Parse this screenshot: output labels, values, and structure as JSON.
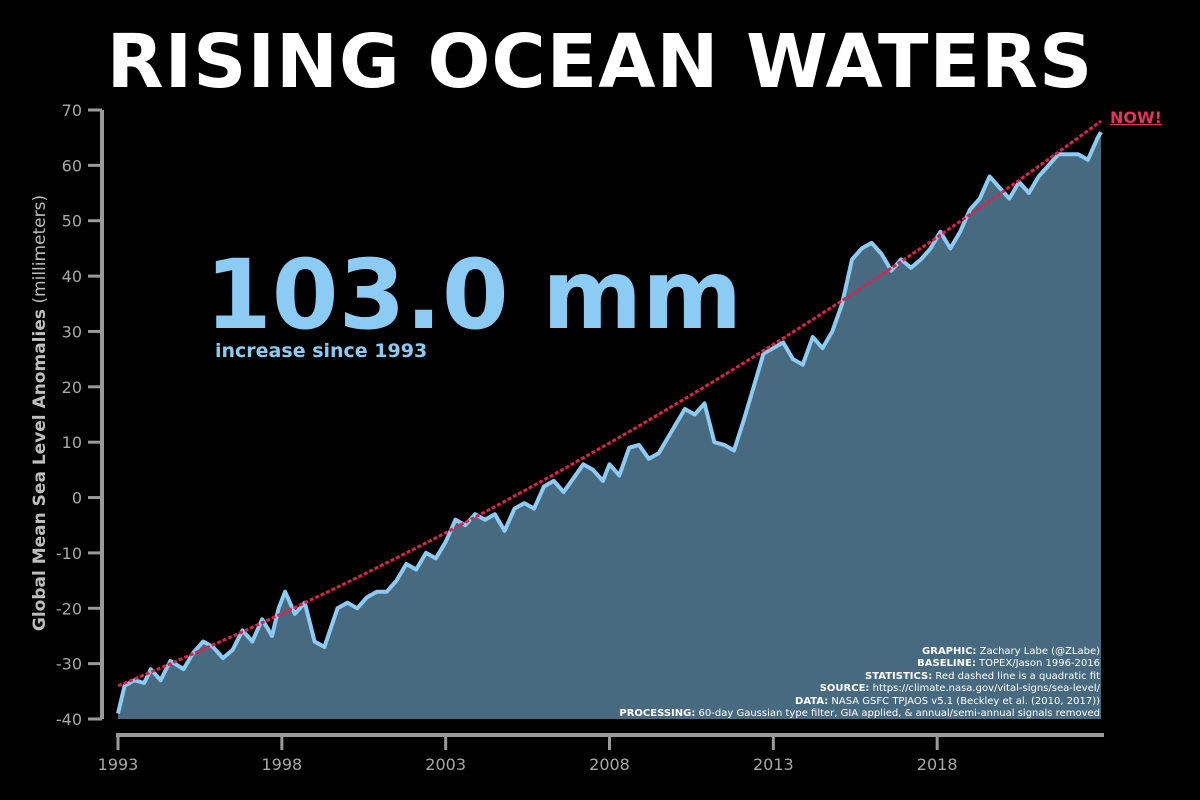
{
  "page": {
    "title": "RISING OCEAN WATERS",
    "big_value": "103.0 mm",
    "big_caption": "increase since 1993",
    "now_label": "NOW!",
    "credits": [
      {
        "key": "GRAPHIC:",
        "value": " Zachary Labe (@ZLabe)"
      },
      {
        "key": "BASELINE:",
        "value": " TOPEX/Jason 1996-2016"
      },
      {
        "key": "STATISTICS:",
        "value": " Red dashed line is a quadratic fit"
      },
      {
        "key": "SOURCE:",
        "value": " https://climate.nasa.gov/vital-signs/sea-level/"
      },
      {
        "key": "DATA:",
        "value": " NASA GSFC TPJAOS v5.1 (Beckley et al. (2010, 2017))"
      },
      {
        "key": "PROCESSING:",
        "value": " 60-day Gaussian type filter, GIA applied, & annual/semi-annual signals removed"
      }
    ]
  },
  "colors": {
    "background": "#000000",
    "fill": "#476a80",
    "line": "#8ccbf4",
    "fit": "#d8244f",
    "axis": "#9a9a9a",
    "tick_label": "#a8a8a8"
  },
  "chart_data": {
    "type": "area",
    "title": "RISING OCEAN WATERS",
    "ylabel_bold": "Global Mean Sea Level Anomalies",
    "ylabel_unit": "(millimeters)",
    "xlabel": "",
    "xlim": [
      1993,
      2023
    ],
    "ylim": [
      -40,
      70
    ],
    "xticks": [
      1993,
      1998,
      2003,
      2008,
      2013,
      2018
    ],
    "yticks": [
      -40,
      -30,
      -20,
      -10,
      0,
      10,
      20,
      30,
      40,
      50,
      60,
      70
    ],
    "grid": false,
    "series": [
      {
        "name": "",
        "x": [
          1993.0,
          1993.2,
          1993.5,
          1993.8,
          1994.0,
          1994.3,
          1994.6,
          1995.0,
          1995.3,
          1995.6,
          1995.9,
          1996.2,
          1996.5,
          1996.8,
          1997.1,
          1997.4,
          1997.7,
          1997.9,
          1998.1,
          1998.4,
          1998.7,
          1999.0,
          1999.3,
          1999.7,
          2000.0,
          2000.3,
          2000.6,
          2000.9,
          2001.2,
          2001.5,
          2001.8,
          2002.1,
          2002.4,
          2002.7,
          2003.0,
          2003.3,
          2003.6,
          2003.9,
          2004.2,
          2004.5,
          2004.8,
          2005.1,
          2005.4,
          2005.7,
          2006.0,
          2006.3,
          2006.6,
          2006.9,
          2007.2,
          2007.5,
          2007.8,
          2008.0,
          2008.3,
          2008.6,
          2008.9,
          2009.2,
          2009.5,
          2009.8,
          2010.0,
          2010.3,
          2010.6,
          2010.9,
          2011.2,
          2011.5,
          2011.8,
          2012.1,
          2012.4,
          2012.7,
          2013.0,
          2013.3,
          2013.6,
          2013.9,
          2014.2,
          2014.5,
          2014.8,
          2015.1,
          2015.4,
          2015.7,
          2016.0,
          2016.3,
          2016.6,
          2016.9,
          2017.2,
          2017.5,
          2017.8,
          2018.1,
          2018.4,
          2018.7,
          2019.0,
          2019.3,
          2019.6,
          2019.9,
          2020.2,
          2020.5,
          2020.8,
          2021.1,
          2021.4,
          2021.7,
          2022.0,
          2022.3,
          2022.6,
          2022.9,
          2023.0
        ],
        "values": [
          -39,
          -34,
          -33,
          -33.5,
          -31,
          -33,
          -29.5,
          -31,
          -28,
          -26,
          -27,
          -29,
          -27.5,
          -24,
          -26,
          -22,
          -25,
          -20,
          -17,
          -21,
          -19,
          -26,
          -27,
          -20,
          -19,
          -20,
          -18,
          -17,
          -17,
          -15,
          -12,
          -13,
          -10,
          -11,
          -8,
          -4,
          -5,
          -3,
          -4,
          -3,
          -6,
          -2,
          -1,
          -2,
          2,
          3,
          1,
          3.5,
          6,
          5,
          3,
          6,
          4,
          9,
          9.5,
          7,
          8,
          11,
          13,
          16,
          15,
          17,
          10,
          9.5,
          8.5,
          14,
          20,
          26,
          27,
          28,
          25,
          24,
          29,
          27,
          30,
          35,
          43,
          45,
          46,
          44,
          41,
          43,
          41.5,
          43,
          45,
          48,
          45,
          48,
          52,
          54,
          58,
          56,
          54,
          57,
          55,
          58,
          60,
          62,
          62,
          62,
          61,
          65,
          66
        ]
      }
    ],
    "fit": {
      "type": "quadratic",
      "start": [
        1993,
        -34
      ],
      "end": [
        2023,
        68
      ]
    },
    "big_value": "103.0 mm",
    "big_caption": "increase since 1993"
  }
}
